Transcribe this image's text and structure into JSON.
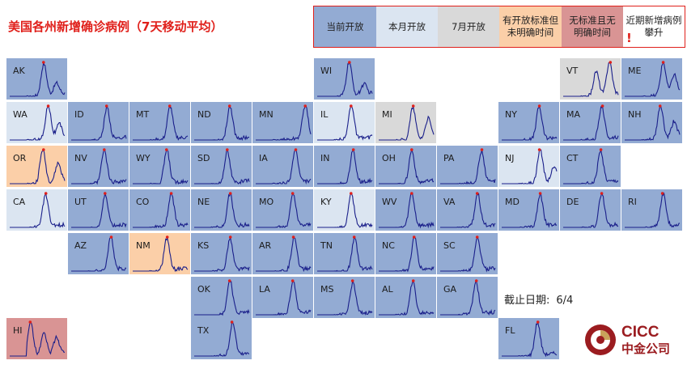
{
  "title": "美国各州新增确诊病例（7天移动平均）",
  "legend": [
    {
      "key": "open",
      "label": "当前开放",
      "color": "#93abd3"
    },
    {
      "key": "may",
      "label": "本月开放",
      "color": "#dbe5f1"
    },
    {
      "key": "july",
      "label": "7月开放",
      "color": "#d9d9d9"
    },
    {
      "key": "orange",
      "label": "有开放标准但未明确时间",
      "color": "#fbcfa8"
    },
    {
      "key": "red",
      "label": "无标准且无明确时间",
      "color": "#d99494"
    },
    {
      "key": "warn",
      "label": "近期新增病例攀升",
      "marker": "!",
      "color": "#ffffff"
    }
  ],
  "cutoff": {
    "label": "截止日期:",
    "value": "6/4"
  },
  "logo": {
    "name": "CICC",
    "subname": "中金公司"
  },
  "chart_data": {
    "type": "line",
    "title": "美国各州新增确诊病例（7天移动平均）",
    "tiles": [
      {
        "state": "AK",
        "status": "open",
        "peaks": [
          [
            0.62,
            1.0
          ],
          [
            0.85,
            0.35
          ]
        ]
      },
      {
        "state": "WI",
        "status": "open",
        "peaks": [
          [
            0.58,
            1.0
          ],
          [
            0.85,
            0.3
          ]
        ]
      },
      {
        "state": "VT",
        "status": "july",
        "peaks": [
          [
            0.6,
            0.75
          ],
          [
            0.84,
            1.0
          ]
        ]
      },
      {
        "state": "ME",
        "status": "open",
        "peaks": [
          [
            0.7,
            1.0
          ],
          [
            0.9,
            0.6
          ]
        ]
      },
      {
        "state": "WA",
        "status": "may",
        "peaks": [
          [
            0.7,
            1.0
          ],
          [
            0.9,
            0.4
          ]
        ]
      },
      {
        "state": "ID",
        "status": "open",
        "peaks": [
          [
            0.65,
            1.0
          ]
        ]
      },
      {
        "state": "MT",
        "status": "open",
        "peaks": [
          [
            0.68,
            1.0
          ]
        ]
      },
      {
        "state": "ND",
        "status": "open",
        "peaks": [
          [
            0.65,
            1.0
          ]
        ]
      },
      {
        "state": "MN",
        "status": "open",
        "peaks": [
          [
            0.9,
            1.0
          ]
        ]
      },
      {
        "state": "IL",
        "status": "may",
        "peaks": [
          [
            0.62,
            1.0
          ]
        ]
      },
      {
        "state": "MI",
        "status": "july",
        "peaks": [
          [
            0.62,
            1.0
          ],
          [
            0.9,
            0.6
          ]
        ]
      },
      {
        "state": "NY",
        "status": "open",
        "peaks": [
          [
            0.68,
            1.0
          ]
        ]
      },
      {
        "state": "MA",
        "status": "open",
        "peaks": [
          [
            0.7,
            1.0
          ]
        ]
      },
      {
        "state": "NH",
        "status": "open",
        "peaks": [
          [
            0.65,
            1.0
          ],
          [
            0.9,
            0.5
          ]
        ]
      },
      {
        "state": "OR",
        "status": "orange",
        "peaks": [
          [
            0.6,
            1.0
          ],
          [
            0.88,
            0.55
          ]
        ]
      },
      {
        "state": "NV",
        "status": "open",
        "peaks": [
          [
            0.6,
            1.0
          ]
        ]
      },
      {
        "state": "WY",
        "status": "open",
        "peaks": [
          [
            0.62,
            1.0
          ]
        ]
      },
      {
        "state": "SD",
        "status": "open",
        "peaks": [
          [
            0.6,
            1.0
          ]
        ]
      },
      {
        "state": "IA",
        "status": "open",
        "peaks": [
          [
            0.72,
            1.0
          ]
        ]
      },
      {
        "state": "IN",
        "status": "open",
        "peaks": [
          [
            0.65,
            1.0
          ]
        ]
      },
      {
        "state": "OH",
        "status": "open",
        "peaks": [
          [
            0.6,
            1.0
          ]
        ]
      },
      {
        "state": "PA",
        "status": "open",
        "peaks": [
          [
            0.75,
            1.0
          ]
        ]
      },
      {
        "state": "NJ",
        "status": "may",
        "peaks": [
          [
            0.7,
            1.0
          ],
          [
            0.95,
            0.45
          ]
        ]
      },
      {
        "state": "CT",
        "status": "open",
        "peaks": [
          [
            0.68,
            1.0
          ]
        ]
      },
      {
        "state": "CA",
        "status": "may",
        "peaks": [
          [
            0.65,
            1.0
          ]
        ]
      },
      {
        "state": "UT",
        "status": "open",
        "peaks": [
          [
            0.62,
            1.0
          ]
        ]
      },
      {
        "state": "CO",
        "status": "open",
        "peaks": [
          [
            0.7,
            1.0
          ]
        ]
      },
      {
        "state": "NE",
        "status": "open",
        "peaks": [
          [
            0.65,
            1.0
          ]
        ]
      },
      {
        "state": "MO",
        "status": "open",
        "peaks": [
          [
            0.68,
            1.0
          ]
        ]
      },
      {
        "state": "KY",
        "status": "may",
        "peaks": [
          [
            0.62,
            1.0
          ]
        ]
      },
      {
        "state": "WV",
        "status": "open",
        "peaks": [
          [
            0.6,
            1.0
          ]
        ]
      },
      {
        "state": "VA",
        "status": "open",
        "peaks": [
          [
            0.68,
            1.0
          ]
        ]
      },
      {
        "state": "MD",
        "status": "open",
        "peaks": [
          [
            0.7,
            1.0
          ]
        ]
      },
      {
        "state": "DE",
        "status": "open",
        "peaks": [
          [
            0.7,
            1.0
          ]
        ]
      },
      {
        "state": "RI",
        "status": "open",
        "peaks": [
          [
            0.7,
            1.0
          ]
        ]
      },
      {
        "state": "AZ",
        "status": "open",
        "peaks": [
          [
            0.72,
            1.0
          ]
        ]
      },
      {
        "state": "NM",
        "status": "orange",
        "peaks": [
          [
            0.62,
            1.0
          ]
        ]
      },
      {
        "state": "KS",
        "status": "open",
        "peaks": [
          [
            0.65,
            1.0
          ]
        ]
      },
      {
        "state": "AR",
        "status": "open",
        "peaks": [
          [
            0.7,
            1.0
          ]
        ]
      },
      {
        "state": "TN",
        "status": "open",
        "peaks": [
          [
            0.68,
            1.0
          ]
        ]
      },
      {
        "state": "NC",
        "status": "open",
        "peaks": [
          [
            0.65,
            1.0
          ]
        ]
      },
      {
        "state": "SC",
        "status": "open",
        "peaks": [
          [
            0.68,
            1.0
          ]
        ]
      },
      {
        "state": "OK",
        "status": "open",
        "peaks": [
          [
            0.65,
            1.0
          ]
        ]
      },
      {
        "state": "LA",
        "status": "open",
        "peaks": [
          [
            0.68,
            1.0
          ]
        ]
      },
      {
        "state": "MS",
        "status": "open",
        "peaks": [
          [
            0.65,
            1.0
          ]
        ]
      },
      {
        "state": "AL",
        "status": "open",
        "peaks": [
          [
            0.62,
            1.0
          ]
        ]
      },
      {
        "state": "GA",
        "status": "open",
        "peaks": [
          [
            0.65,
            1.0
          ]
        ]
      },
      {
        "state": "HI",
        "status": "red",
        "peaks": [
          [
            0.38,
            1.0
          ],
          [
            0.62,
            0.7
          ],
          [
            0.85,
            0.5
          ]
        ]
      },
      {
        "state": "TX",
        "status": "open",
        "peaks": [
          [
            0.7,
            1.0
          ]
        ]
      },
      {
        "state": "FL",
        "status": "open",
        "peaks": [
          [
            0.65,
            1.0
          ]
        ]
      }
    ]
  }
}
